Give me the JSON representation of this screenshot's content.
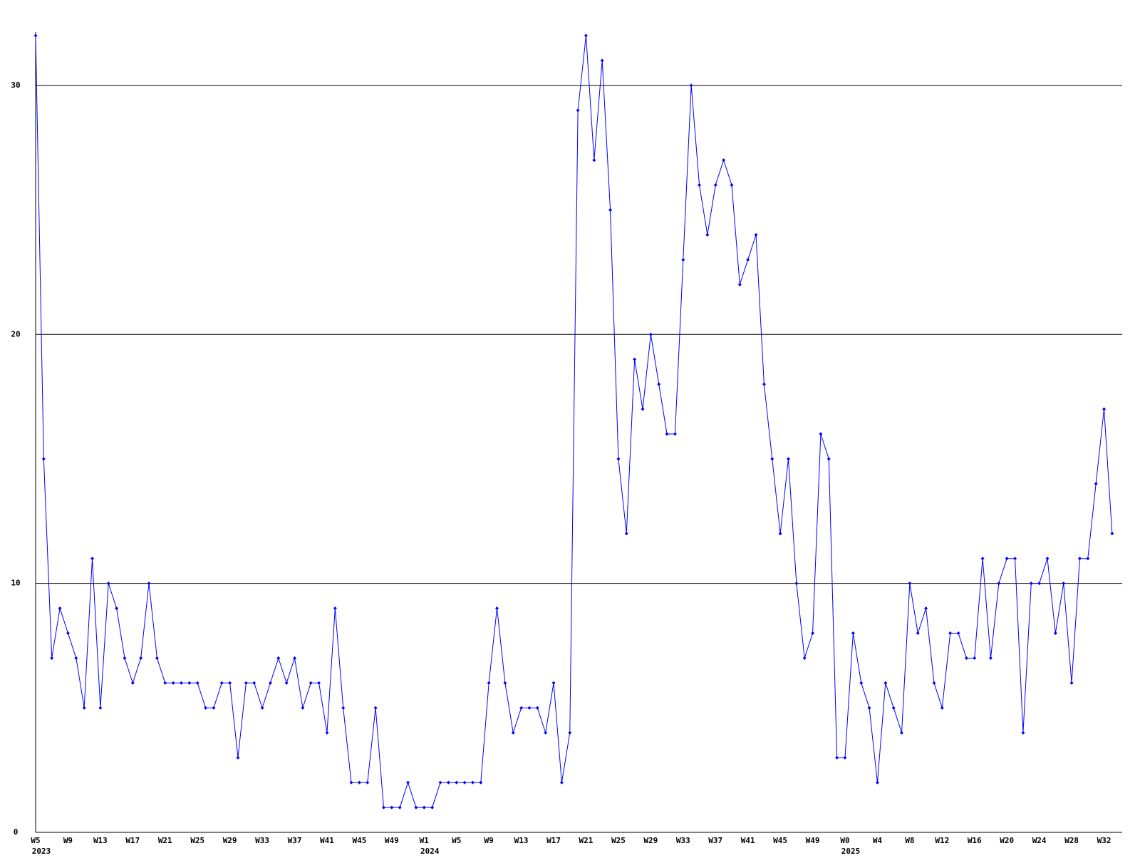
{
  "chart_data": {
    "type": "line",
    "categories": [
      "W5",
      null,
      null,
      null,
      "W9",
      null,
      null,
      null,
      "W13",
      null,
      null,
      null,
      "W17",
      null,
      null,
      null,
      "W21",
      null,
      null,
      null,
      "W25",
      null,
      null,
      null,
      "W29",
      null,
      null,
      null,
      "W33",
      null,
      null,
      null,
      "W37",
      null,
      null,
      null,
      "W41",
      null,
      null,
      null,
      "W45",
      null,
      null,
      null,
      "W49",
      null,
      null,
      null,
      "W1",
      null,
      null,
      null,
      "W5",
      null,
      null,
      null,
      "W9",
      null,
      null,
      null,
      "W13",
      null,
      null,
      null,
      "W17",
      null,
      null,
      null,
      "W21",
      null,
      null,
      null,
      "W25",
      null,
      null,
      null,
      "W29",
      null,
      null,
      null,
      "W33",
      null,
      null,
      null,
      "W37",
      null,
      null,
      null,
      "W41",
      null,
      null,
      null,
      "W45",
      null,
      null,
      null,
      "W49",
      null,
      null,
      null,
      "W0",
      null,
      null,
      null,
      "W4",
      null,
      null,
      null,
      "W8",
      null,
      null,
      null,
      "W12",
      null,
      null,
      null,
      "W16",
      null,
      null,
      null,
      "W20",
      null,
      null,
      null,
      "W24",
      null,
      null,
      null,
      "W28",
      null,
      null,
      null,
      "W32",
      null
    ],
    "years": [
      "2023",
      null,
      null,
      null,
      null,
      null,
      null,
      null,
      null,
      null,
      null,
      null,
      null,
      null,
      null,
      null,
      null,
      null,
      null,
      null,
      null,
      null,
      null,
      null,
      null,
      null,
      null,
      null,
      null,
      null,
      null,
      null,
      null,
      null,
      null,
      null,
      null,
      null,
      null,
      null,
      null,
      null,
      null,
      null,
      null,
      null,
      null,
      null,
      "2024",
      null,
      null,
      null,
      null,
      null,
      null,
      null,
      null,
      null,
      null,
      null,
      null,
      null,
      null,
      null,
      null,
      null,
      null,
      null,
      null,
      null,
      null,
      null,
      null,
      null,
      null,
      null,
      null,
      null,
      null,
      null,
      null,
      null,
      null,
      null,
      null,
      null,
      null,
      null,
      null,
      null,
      null,
      null,
      null,
      null,
      null,
      null,
      null,
      null,
      null,
      null,
      "2025",
      null,
      null,
      null,
      null,
      null,
      null,
      null,
      null,
      null,
      null,
      null,
      null,
      null,
      null,
      null,
      null,
      null,
      null,
      null,
      null,
      null,
      null,
      null,
      null,
      null,
      null,
      null,
      null,
      null,
      null,
      null,
      null,
      null
    ],
    "series": [
      {
        "color": "#0000ff",
        "values": [
          32,
          15,
          7,
          9,
          8,
          7,
          5,
          11,
          5,
          10,
          9,
          7,
          6,
          7,
          10,
          7,
          6,
          6,
          6,
          6,
          6,
          5,
          5,
          6,
          6,
          3,
          6,
          6,
          5,
          6,
          7,
          6,
          7,
          5,
          6,
          6,
          4,
          9,
          5,
          2,
          2,
          2,
          5,
          1,
          1,
          1,
          2,
          1,
          1,
          1,
          2,
          2,
          2,
          2,
          2,
          2,
          6,
          9,
          6,
          4,
          5,
          5,
          5,
          4,
          6,
          2,
          4,
          29,
          32,
          27,
          31,
          25,
          15,
          12,
          19,
          17,
          20,
          18,
          16,
          16,
          23,
          30,
          26,
          24,
          26,
          27,
          26,
          22,
          23,
          24,
          18,
          15,
          12,
          15,
          10,
          7,
          8,
          16,
          15,
          3,
          3,
          8,
          6,
          5,
          2,
          6,
          5,
          4,
          10,
          8,
          9,
          6,
          5,
          8,
          8,
          7,
          7,
          11,
          7,
          10,
          11,
          11,
          4,
          10,
          10,
          11,
          8,
          10,
          6,
          11,
          11,
          14,
          17,
          12
        ]
      }
    ],
    "ylim": [
      0,
      32
    ],
    "yticks": [
      0,
      10,
      20,
      30
    ],
    "grid": true
  }
}
